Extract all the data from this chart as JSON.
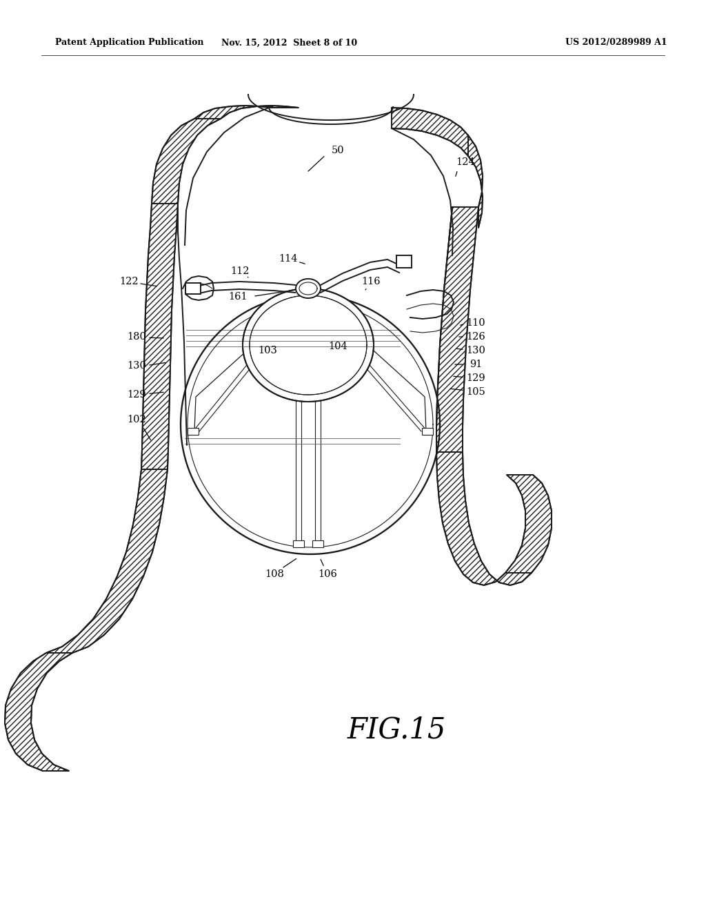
{
  "background": "#ffffff",
  "lc": "#1a1a1a",
  "header_left": "Patent Application Publication",
  "header_mid": "Nov. 15, 2012  Sheet 8 of 10",
  "header_right": "US 2012/0289989 A1",
  "fig_label": "FIG.15",
  "lw_main": 1.4,
  "lw_thin": 0.8,
  "lw_thick": 2.0
}
